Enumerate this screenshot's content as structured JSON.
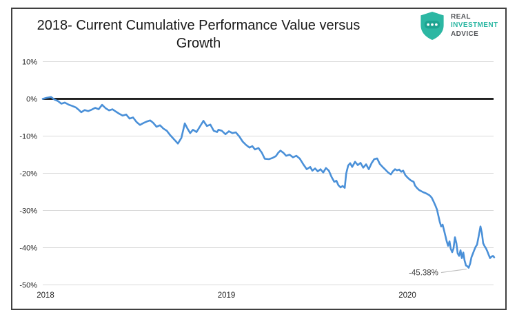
{
  "header": {
    "title_line1": "2018- Current Cumulative Performance Value versus",
    "title_line2": "Growth"
  },
  "logo": {
    "line1": "REAL",
    "line2": "INVESTMENT",
    "line3": "ADVICE",
    "teal_color": "#2CB7A3",
    "gray_color": "#54565A"
  },
  "chart_data": {
    "type": "line",
    "title": "2018- Current Cumulative Performance Value versus Growth",
    "xlabel": "",
    "ylabel": "",
    "xlim": [
      2018.0,
      2020.5
    ],
    "ylim": [
      -50,
      10
    ],
    "grid": "horizontal-only",
    "legend": "none",
    "zero_line": {
      "show": true,
      "color": "#111111"
    },
    "gridline_color": "#d9d9d9",
    "x_ticks": [
      {
        "label": "2018",
        "value": 2018
      },
      {
        "label": "2019",
        "value": 2019
      },
      {
        "label": "2020",
        "value": 2020
      }
    ],
    "y_ticks": [
      {
        "label": "10%",
        "value": 10
      },
      {
        "label": "0%",
        "value": 0
      },
      {
        "label": "-10%",
        "value": -10
      },
      {
        "label": "-20%",
        "value": -20
      },
      {
        "label": "-30%",
        "value": -30
      },
      {
        "label": "-40%",
        "value": -40
      },
      {
        "label": "-50%",
        "value": -50
      }
    ],
    "annotation": {
      "label": "-45.38%",
      "x": 2020.354,
      "y": -45.38
    },
    "series": [
      {
        "color": "#4A90D8",
        "points": [
          [
            2018.0,
            0.0
          ],
          [
            2018.023,
            0.3
          ],
          [
            2018.046,
            0.5
          ],
          [
            2018.065,
            -0.2
          ],
          [
            2018.084,
            -0.6
          ],
          [
            2018.103,
            -1.3
          ],
          [
            2018.122,
            -1.0
          ],
          [
            2018.145,
            -1.6
          ],
          [
            2018.164,
            -1.9
          ],
          [
            2018.183,
            -2.3
          ],
          [
            2018.198,
            -2.9
          ],
          [
            2018.213,
            -3.6
          ],
          [
            2018.232,
            -3.0
          ],
          [
            2018.251,
            -3.3
          ],
          [
            2018.27,
            -2.9
          ],
          [
            2018.29,
            -2.4
          ],
          [
            2018.309,
            -2.8
          ],
          [
            2018.328,
            -1.6
          ],
          [
            2018.347,
            -2.5
          ],
          [
            2018.366,
            -3.1
          ],
          [
            2018.385,
            -2.8
          ],
          [
            2018.404,
            -3.4
          ],
          [
            2018.423,
            -4.0
          ],
          [
            2018.442,
            -4.5
          ],
          [
            2018.461,
            -4.2
          ],
          [
            2018.48,
            -5.3
          ],
          [
            2018.499,
            -5.0
          ],
          [
            2018.518,
            -6.2
          ],
          [
            2018.537,
            -7.0
          ],
          [
            2018.556,
            -6.5
          ],
          [
            2018.575,
            -6.1
          ],
          [
            2018.594,
            -5.8
          ],
          [
            2018.61,
            -6.4
          ],
          [
            2018.629,
            -7.5
          ],
          [
            2018.648,
            -7.1
          ],
          [
            2018.667,
            -8.0
          ],
          [
            2018.686,
            -8.6
          ],
          [
            2018.705,
            -9.8
          ],
          [
            2018.724,
            -10.8
          ],
          [
            2018.747,
            -12.0
          ],
          [
            2018.766,
            -10.5
          ],
          [
            2018.785,
            -6.6
          ],
          [
            2018.8,
            -8.0
          ],
          [
            2018.815,
            -9.2
          ],
          [
            2018.83,
            -8.3
          ],
          [
            2018.85,
            -8.9
          ],
          [
            2018.869,
            -7.4
          ],
          [
            2018.888,
            -5.9
          ],
          [
            2018.907,
            -7.3
          ],
          [
            2018.926,
            -6.9
          ],
          [
            2018.945,
            -8.6
          ],
          [
            2018.964,
            -8.9
          ],
          [
            2018.971,
            -8.3
          ],
          [
            2018.99,
            -8.6
          ],
          [
            2019.01,
            -9.5
          ],
          [
            2019.029,
            -8.7
          ],
          [
            2019.048,
            -9.2
          ],
          [
            2019.067,
            -9.0
          ],
          [
            2019.086,
            -10.1
          ],
          [
            2019.105,
            -11.5
          ],
          [
            2019.124,
            -12.4
          ],
          [
            2019.143,
            -13.1
          ],
          [
            2019.158,
            -12.7
          ],
          [
            2019.173,
            -13.6
          ],
          [
            2019.192,
            -13.2
          ],
          [
            2019.211,
            -14.5
          ],
          [
            2019.227,
            -16.1
          ],
          [
            2019.25,
            -16.2
          ],
          [
            2019.269,
            -15.9
          ],
          [
            2019.288,
            -15.4
          ],
          [
            2019.303,
            -14.4
          ],
          [
            2019.314,
            -13.9
          ],
          [
            2019.33,
            -14.5
          ],
          [
            2019.345,
            -15.3
          ],
          [
            2019.364,
            -15.0
          ],
          [
            2019.383,
            -15.7
          ],
          [
            2019.402,
            -15.3
          ],
          [
            2019.421,
            -16.1
          ],
          [
            2019.44,
            -17.6
          ],
          [
            2019.459,
            -18.9
          ],
          [
            2019.478,
            -18.3
          ],
          [
            2019.49,
            -19.3
          ],
          [
            2019.505,
            -18.7
          ],
          [
            2019.52,
            -19.5
          ],
          [
            2019.535,
            -18.9
          ],
          [
            2019.55,
            -19.8
          ],
          [
            2019.565,
            -18.6
          ],
          [
            2019.581,
            -19.3
          ],
          [
            2019.596,
            -21.0
          ],
          [
            2019.611,
            -22.3
          ],
          [
            2019.623,
            -22.0
          ],
          [
            2019.634,
            -23.2
          ],
          [
            2019.646,
            -23.8
          ],
          [
            2019.657,
            -23.4
          ],
          [
            2019.669,
            -23.9
          ],
          [
            2019.677,
            -20.1
          ],
          [
            2019.688,
            -17.9
          ],
          [
            2019.699,
            -17.3
          ],
          [
            2019.71,
            -18.3
          ],
          [
            2019.726,
            -16.9
          ],
          [
            2019.741,
            -17.8
          ],
          [
            2019.756,
            -17.2
          ],
          [
            2019.771,
            -18.5
          ],
          [
            2019.787,
            -17.6
          ],
          [
            2019.802,
            -18.9
          ],
          [
            2019.817,
            -17.3
          ],
          [
            2019.832,
            -16.2
          ],
          [
            2019.848,
            -16.0
          ],
          [
            2019.863,
            -17.5
          ],
          [
            2019.878,
            -18.3
          ],
          [
            2019.893,
            -19.0
          ],
          [
            2019.909,
            -19.8
          ],
          [
            2019.924,
            -20.3
          ],
          [
            2019.935,
            -19.5
          ],
          [
            2019.947,
            -18.9
          ],
          [
            2019.958,
            -19.2
          ],
          [
            2019.97,
            -19.0
          ],
          [
            2019.981,
            -19.6
          ],
          [
            2019.992,
            -19.3
          ],
          [
            2020.004,
            -20.5
          ],
          [
            2020.019,
            -21.3
          ],
          [
            2020.034,
            -21.9
          ],
          [
            2020.05,
            -22.3
          ],
          [
            2020.057,
            -23.3
          ],
          [
            2020.069,
            -24.0
          ],
          [
            2020.08,
            -24.5
          ],
          [
            2020.091,
            -24.8
          ],
          [
            2020.103,
            -25.1
          ],
          [
            2020.114,
            -25.3
          ],
          [
            2020.126,
            -25.6
          ],
          [
            2020.137,
            -25.9
          ],
          [
            2020.149,
            -26.5
          ],
          [
            2020.16,
            -27.6
          ],
          [
            2020.171,
            -28.8
          ],
          [
            2020.179,
            -29.8
          ],
          [
            2020.186,
            -31.3
          ],
          [
            2020.194,
            -33.0
          ],
          [
            2020.202,
            -34.3
          ],
          [
            2020.21,
            -33.8
          ],
          [
            2020.217,
            -35.2
          ],
          [
            2020.225,
            -36.8
          ],
          [
            2020.232,
            -38.2
          ],
          [
            2020.24,
            -39.5
          ],
          [
            2020.248,
            -38.3
          ],
          [
            2020.255,
            -40.3
          ],
          [
            2020.263,
            -41.2
          ],
          [
            2020.27,
            -40.2
          ],
          [
            2020.278,
            -37.2
          ],
          [
            2020.286,
            -38.8
          ],
          [
            2020.293,
            -41.5
          ],
          [
            2020.301,
            -42.2
          ],
          [
            2020.309,
            -40.7
          ],
          [
            2020.316,
            -42.8
          ],
          [
            2020.324,
            -41.3
          ],
          [
            2020.331,
            -43.4
          ],
          [
            2020.339,
            -44.8
          ],
          [
            2020.347,
            -45.0
          ],
          [
            2020.354,
            -45.38
          ],
          [
            2020.362,
            -44.3
          ],
          [
            2020.369,
            -42.6
          ],
          [
            2020.377,
            -41.6
          ],
          [
            2020.385,
            -40.6
          ],
          [
            2020.392,
            -39.8
          ],
          [
            2020.4,
            -39.2
          ],
          [
            2020.407,
            -37.5
          ],
          [
            2020.415,
            -35.4
          ],
          [
            2020.419,
            -34.3
          ],
          [
            2020.427,
            -36.1
          ],
          [
            2020.434,
            -38.8
          ],
          [
            2020.442,
            -39.6
          ],
          [
            2020.45,
            -40.2
          ],
          [
            2020.457,
            -41.0
          ],
          [
            2020.465,
            -42.0
          ],
          [
            2020.472,
            -42.8
          ],
          [
            2020.48,
            -42.4
          ],
          [
            2020.488,
            -42.2
          ],
          [
            2020.495,
            -42.6
          ]
        ]
      }
    ]
  }
}
